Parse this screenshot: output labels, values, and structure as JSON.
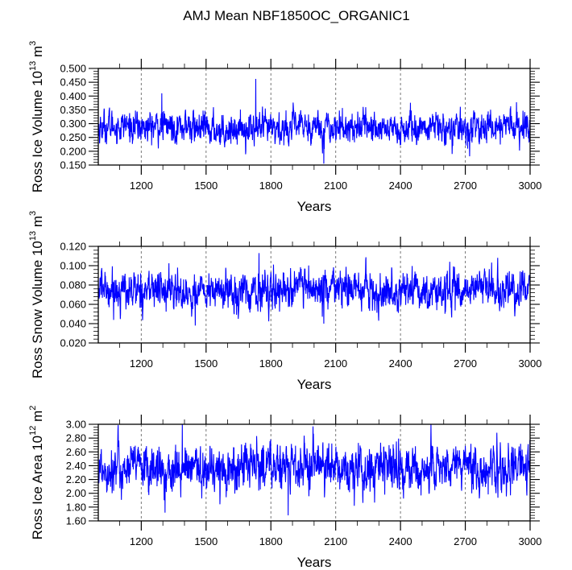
{
  "chart_data": {
    "title": "AMJ Mean NBF1850OC_ORGANIC1",
    "type": "line",
    "x_range": [
      1001,
      3000
    ],
    "panels": [
      {
        "name": "ross-ice-volume",
        "ylabel": "Ross Ice Volume 10",
        "ylabel_exp": "13",
        "ylabel_unit": " m",
        "ylabel_unit_exp": "3",
        "xlabel": "Years",
        "ylim": [
          0.15,
          0.5
        ],
        "yticks": [
          0.15,
          0.2,
          0.25,
          0.3,
          0.35,
          0.4,
          0.45,
          0.5
        ],
        "ytick_labels": [
          "0.150",
          "0.200",
          "0.250",
          "0.300",
          "0.350",
          "0.400",
          "0.450",
          "0.500"
        ],
        "yminor_step": 0.01,
        "xticks": [
          1200,
          1500,
          1800,
          2100,
          2400,
          2700,
          3000
        ],
        "xtick_labels": [
          "1200",
          "1500",
          "1800",
          "2100",
          "2400",
          "2700",
          "3000"
        ],
        "series": {
          "name": "ice volume",
          "color": "#0000ff",
          "mean": 0.285,
          "std": 0.032,
          "min": 0.155,
          "max": 0.462,
          "notable_points": [
            {
              "x": 1730,
              "y": 0.462
            },
            {
              "x": 2045,
              "y": 0.155
            },
            {
              "x": 1295,
              "y": 0.41
            }
          ]
        }
      },
      {
        "name": "ross-snow-volume",
        "ylabel": "Ross Snow Volume 10",
        "ylabel_exp": "13",
        "ylabel_unit": " m",
        "ylabel_unit_exp": "3",
        "xlabel": "Years",
        "ylim": [
          0.02,
          0.12
        ],
        "yticks": [
          0.02,
          0.04,
          0.06,
          0.08,
          0.1,
          0.12
        ],
        "ytick_labels": [
          "0.020",
          "0.040",
          "0.060",
          "0.080",
          "0.100",
          "0.120"
        ],
        "yminor_step": 0.004,
        "xticks": [
          1200,
          1500,
          1800,
          2100,
          2400,
          2700,
          3000
        ],
        "xtick_labels": [
          "1200",
          "1500",
          "1800",
          "2100",
          "2400",
          "2700",
          "3000"
        ],
        "series": {
          "name": "snow volume",
          "color": "#0000ff",
          "mean": 0.074,
          "std": 0.011,
          "min": 0.038,
          "max": 0.113,
          "notable_points": [
            {
              "x": 1745,
              "y": 0.113
            },
            {
              "x": 2045,
              "y": 0.04
            },
            {
              "x": 1450,
              "y": 0.038
            }
          ]
        }
      },
      {
        "name": "ross-ice-area",
        "ylabel": "Ross Ice Area 10",
        "ylabel_exp": "12",
        "ylabel_unit": " m",
        "ylabel_unit_exp": "2",
        "xlabel": "Years",
        "ylim": [
          1.6,
          3.0
        ],
        "yticks": [
          1.6,
          1.8,
          2.0,
          2.2,
          2.4,
          2.6,
          2.8,
          3.0
        ],
        "ytick_labels": [
          "1.60",
          "1.80",
          "2.00",
          "2.20",
          "2.40",
          "2.60",
          "2.80",
          "3.00"
        ],
        "yminor_step": 0.04,
        "xticks": [
          1200,
          1500,
          1800,
          2100,
          2400,
          2700,
          3000
        ],
        "xtick_labels": [
          "1200",
          "1500",
          "1800",
          "2100",
          "2400",
          "2700",
          "3000"
        ],
        "series": {
          "name": "ice area",
          "color": "#0000ff",
          "mean": 2.36,
          "std": 0.19,
          "min": 1.68,
          "max": 3.0,
          "notable_points": [
            {
              "x": 1390,
              "y": 3.0
            },
            {
              "x": 1995,
              "y": 2.97
            },
            {
              "x": 1880,
              "y": 1.68
            },
            {
              "x": 1310,
              "y": 1.72
            }
          ]
        }
      }
    ]
  }
}
